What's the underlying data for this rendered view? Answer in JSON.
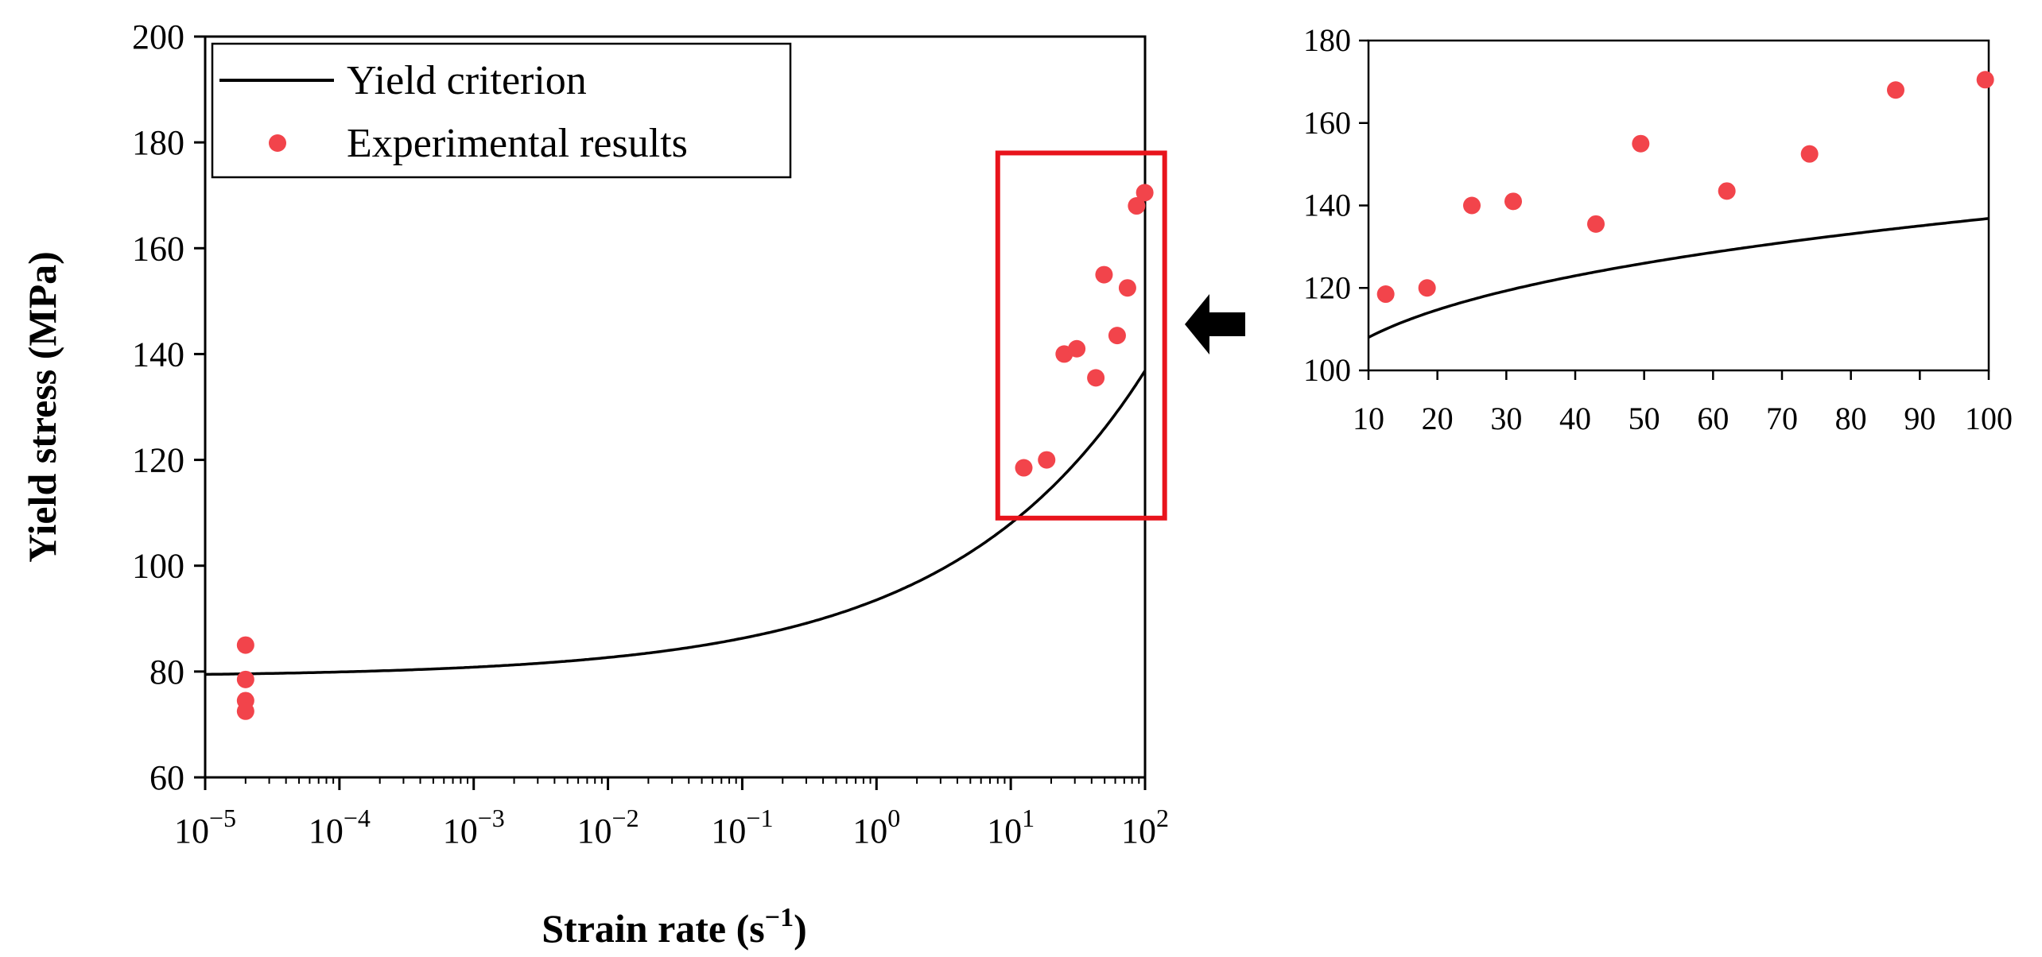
{
  "chart_data": [
    {
      "type": "scatter",
      "title": "",
      "xlabel": "Strain rate (s",
      "xlabel_sup": "−1",
      "xlabel_end": ")",
      "ylabel": "Yield stress (MPa)",
      "xscale": "log",
      "xlim_exp": [
        -5,
        2
      ],
      "ylim": [
        60,
        200
      ],
      "y_ticks": [
        60,
        80,
        100,
        120,
        140,
        160,
        180,
        200
      ],
      "x_ticks": [
        {
          "base": "10",
          "exp": "−5"
        },
        {
          "base": "10",
          "exp": "−4"
        },
        {
          "base": "10",
          "exp": "−3"
        },
        {
          "base": "10",
          "exp": "−2"
        },
        {
          "base": "10",
          "exp": "−1"
        },
        {
          "base": "10",
          "exp": "0"
        },
        {
          "base": "10",
          "exp": "1"
        },
        {
          "base": "10",
          "exp": "2"
        }
      ],
      "legend": {
        "position": "top-left",
        "entries": [
          "Yield criterion",
          "Experimental results"
        ]
      },
      "series": [
        {
          "name": "Yield criterion",
          "kind": "line",
          "model": {
            "sigma0": 79,
            "A": 14.53,
            "n": 0.3
          }
        },
        {
          "name": "Experimental results",
          "kind": "scatter",
          "x": [
            2e-05,
            2e-05,
            2e-05,
            2e-05,
            12.5,
            18.5,
            25,
            31,
            43,
            49.5,
            62,
            74,
            86.5,
            99.5
          ],
          "y": [
            85,
            78.5,
            74.5,
            72.5,
            118.5,
            120,
            140,
            141,
            135.5,
            155,
            143.5,
            152.5,
            168,
            170.5
          ]
        }
      ],
      "annotation": "zoom-box",
      "zoom_box": {
        "x": [
          8,
          140
        ],
        "y": [
          109,
          178
        ]
      }
    },
    {
      "type": "scatter",
      "title": "",
      "xlabel": "",
      "ylabel": "",
      "xlim": [
        10,
        100
      ],
      "ylim": [
        100,
        180
      ],
      "x_ticks": [
        10,
        20,
        30,
        40,
        50,
        60,
        70,
        80,
        90,
        100
      ],
      "y_ticks": [
        100,
        120,
        140,
        160,
        180
      ],
      "series": [
        {
          "name": "Yield criterion",
          "kind": "line"
        },
        {
          "name": "Experimental results",
          "kind": "scatter",
          "x": [
            12.5,
            18.5,
            25,
            31,
            43,
            49.5,
            62,
            74,
            86.5,
            99.5
          ],
          "y": [
            118.5,
            120,
            140,
            141,
            135.5,
            155,
            143.5,
            152.5,
            168,
            170.5
          ]
        }
      ]
    }
  ],
  "colors": {
    "marker": "#f2444b",
    "line": "#000000",
    "box": "#e8141c",
    "arrow": "#000000"
  }
}
